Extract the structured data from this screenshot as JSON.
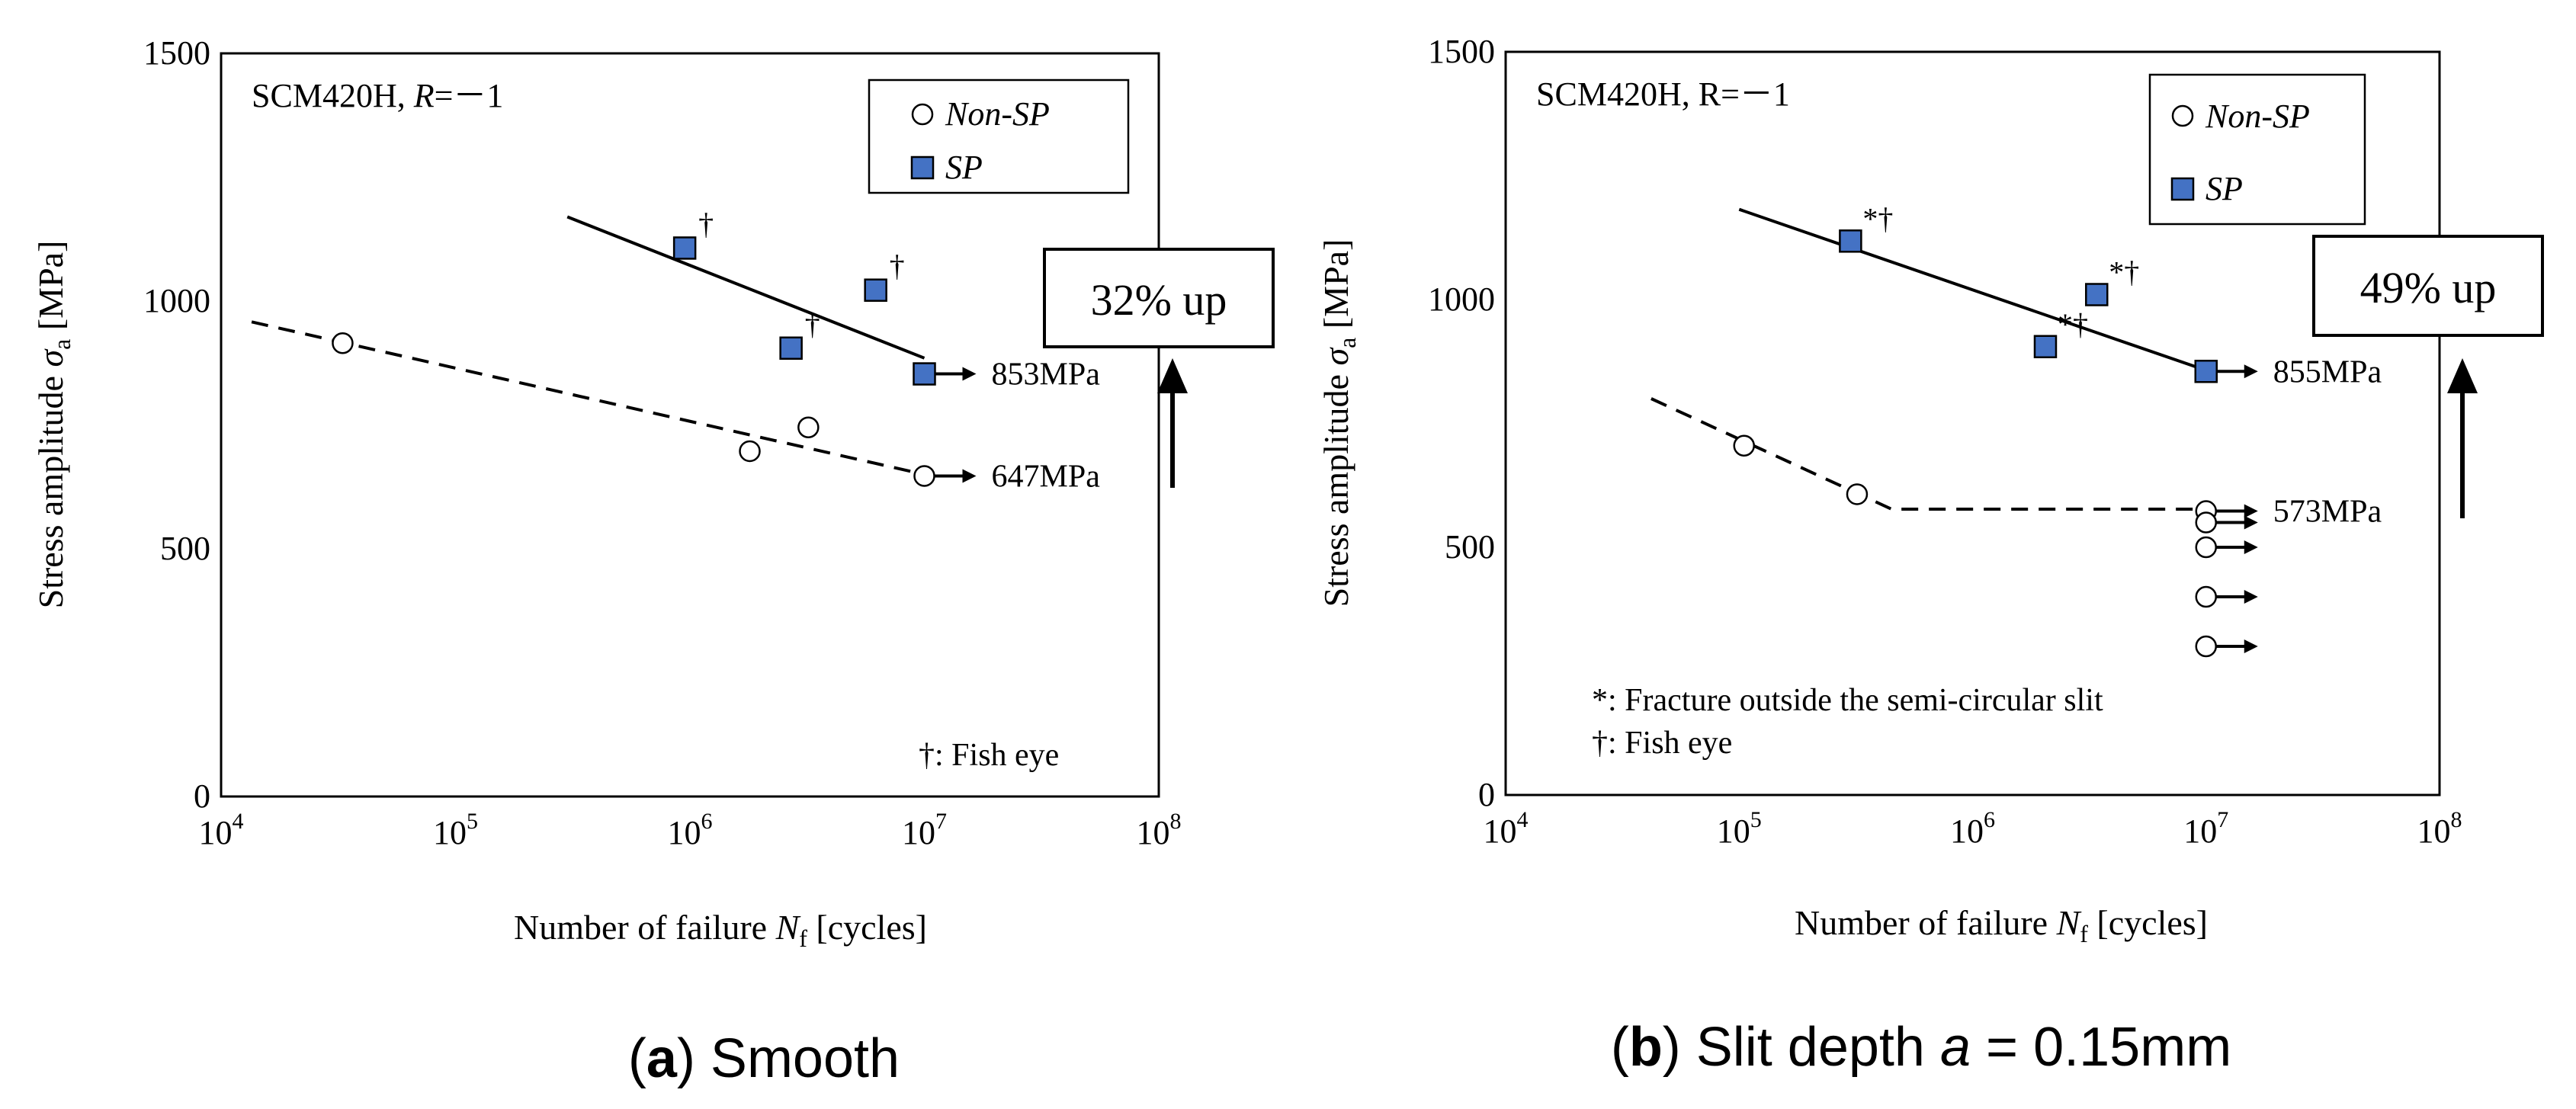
{
  "figure": {
    "caption_a": {
      "paren_open": "(",
      "letter": "a",
      "rest": ") Smooth"
    },
    "caption_b": {
      "paren_open": "(",
      "letter": "b",
      "rest": ") Slit depth ",
      "var": "a",
      "value": " = 0.15mm"
    }
  },
  "colors": {
    "sp_fill": "#4472C4",
    "line": "#000000",
    "nonsp_fill": "#ffffff"
  },
  "chart_data": [
    {
      "type": "scatter",
      "panel": "a",
      "title": "",
      "corner_label": {
        "material": "SCM420H, ",
        "r_var": "R",
        "r_value": "=－1"
      },
      "xlabel": {
        "text": "Number of failure ",
        "var": "N",
        "sub": "f",
        "unit": " [cycles]"
      },
      "ylabel": {
        "text": "Stress amplitude ",
        "var": "σ",
        "sub": "a",
        "unit": " [MPa]"
      },
      "xscale": "log",
      "xlim": [
        10000,
        100000000
      ],
      "ylim": [
        0,
        1500
      ],
      "yticks": [
        0,
        500,
        1000,
        1500
      ],
      "ytick_labels": [
        "0",
        "500",
        "1000",
        "1500"
      ],
      "xtick_labels": [
        {
          "base": "10",
          "exp": "4"
        },
        {
          "base": "10",
          "exp": "5"
        },
        {
          "base": "10",
          "exp": "6"
        },
        {
          "base": "10",
          "exp": "7"
        },
        {
          "base": "10",
          "exp": "8"
        }
      ],
      "legend": {
        "position": "top-right",
        "items": [
          "Non-SP",
          "SP"
        ]
      },
      "series": [
        {
          "name": "Non-SP",
          "marker": "circle",
          "points": [
            {
              "x": 33000,
              "y": 915,
              "note": ""
            },
            {
              "x": 1800000,
              "y": 697,
              "note": ""
            },
            {
              "x": 3200000,
              "y": 745,
              "note": ""
            },
            {
              "x": 10000000,
              "y": 647,
              "note": "",
              "runout": true
            }
          ]
        },
        {
          "name": "SP",
          "marker": "square",
          "points": [
            {
              "x": 950000,
              "y": 1107,
              "note": "†"
            },
            {
              "x": 2700000,
              "y": 905,
              "note": "†"
            },
            {
              "x": 6200000,
              "y": 1022,
              "note": "†"
            },
            {
              "x": 10000000,
              "y": 853,
              "note": "",
              "runout": true
            }
          ]
        }
      ],
      "fit_lines": [
        {
          "series": "SP",
          "style": "solid",
          "points": [
            [
              300000,
              1170
            ],
            [
              10000000,
              885
            ]
          ]
        },
        {
          "series": "Non-SP",
          "style": "dashed",
          "points": [
            [
              13500,
              958
            ],
            [
              10000000,
              650
            ]
          ]
        }
      ],
      "limit_labels": [
        {
          "series": "SP",
          "value": 853,
          "text": "853MPa"
        },
        {
          "series": "Non-SP",
          "value": 647,
          "text": "647MPa"
        }
      ],
      "improvement": {
        "text": "32%  up",
        "from": 647,
        "to": 853
      },
      "notes": [
        "†: Fish eye"
      ]
    },
    {
      "type": "scatter",
      "panel": "b",
      "title": "",
      "corner_label": {
        "material": "SCM420H, ",
        "r_var": "R",
        "r_value": "=－1"
      },
      "xlabel": {
        "text": "Number of failure ",
        "var": "N",
        "sub": "f",
        "unit": " [cycles]"
      },
      "ylabel": {
        "text": "Stress amplitude ",
        "var": "σ",
        "sub": "a",
        "unit": " [MPa]"
      },
      "xscale": "log",
      "xlim": [
        10000,
        100000000
      ],
      "ylim": [
        0,
        1500
      ],
      "yticks": [
        0,
        500,
        1000,
        1500
      ],
      "ytick_labels": [
        "0",
        "500",
        "1000",
        "1500"
      ],
      "xtick_labels": [
        {
          "base": "10",
          "exp": "4"
        },
        {
          "base": "10",
          "exp": "5"
        },
        {
          "base": "10",
          "exp": "6"
        },
        {
          "base": "10",
          "exp": "7"
        },
        {
          "base": "10",
          "exp": "8"
        }
      ],
      "legend": {
        "position": "top-right",
        "items": [
          "Non-SP",
          "SP"
        ]
      },
      "series": [
        {
          "name": "Non-SP",
          "marker": "circle",
          "points": [
            {
              "x": 105000,
              "y": 705,
              "note": ""
            },
            {
              "x": 320000,
              "y": 607,
              "note": ""
            },
            {
              "x": 10000000,
              "y": 573,
              "note": "",
              "runout": true
            },
            {
              "x": 10000000,
              "y": 550,
              "note": "",
              "runout": true
            },
            {
              "x": 10000000,
              "y": 500,
              "note": "",
              "runout": true
            },
            {
              "x": 10000000,
              "y": 400,
              "note": "",
              "runout": true
            },
            {
              "x": 10000000,
              "y": 300,
              "note": "",
              "runout": true
            }
          ]
        },
        {
          "name": "SP",
          "marker": "square",
          "points": [
            {
              "x": 300000,
              "y": 1118,
              "note": "*†"
            },
            {
              "x": 2050000,
              "y": 905,
              "note": "*†"
            },
            {
              "x": 3400000,
              "y": 1010,
              "note": "*†"
            },
            {
              "x": 10000000,
              "y": 855,
              "note": "",
              "runout": true
            }
          ]
        }
      ],
      "fit_lines": [
        {
          "series": "SP",
          "style": "solid",
          "points": [
            [
              100000,
              1182
            ],
            [
              10000000,
              857
            ]
          ]
        },
        {
          "series": "Non-SP",
          "style": "dashed",
          "points": [
            [
              42000,
              800
            ],
            [
              450000,
              577
            ],
            [
              10000000,
              577
            ]
          ]
        }
      ],
      "limit_labels": [
        {
          "series": "SP",
          "value": 855,
          "text": "855MPa"
        },
        {
          "series": "Non-SP",
          "value": 573,
          "text": "573MPa"
        }
      ],
      "improvement": {
        "text": "49%  up",
        "from": 573,
        "to": 855
      },
      "notes": [
        "*: Fracture outside the semi-circular slit",
        "†: Fish eye"
      ]
    }
  ]
}
